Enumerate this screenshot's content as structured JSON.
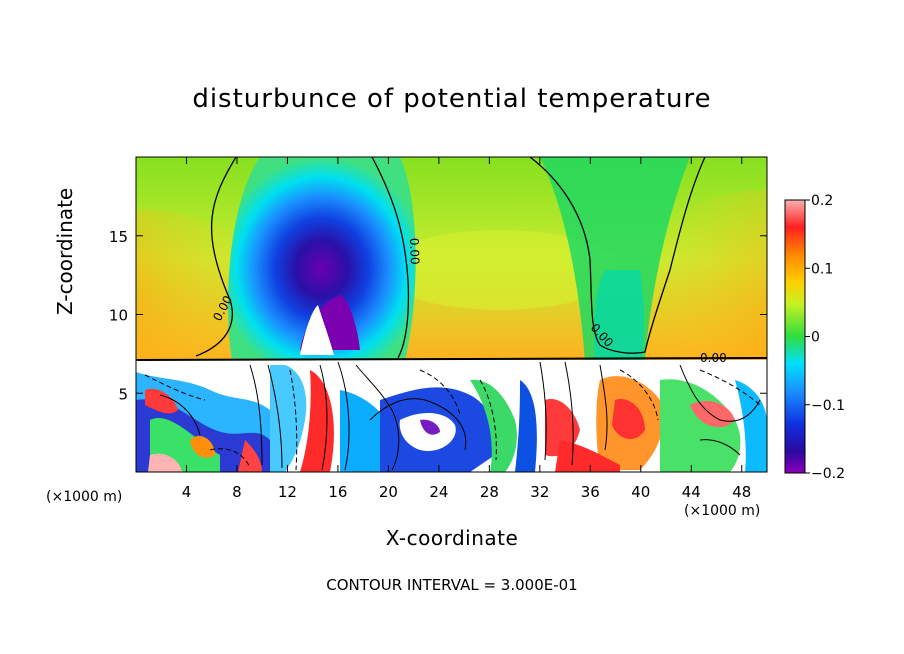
{
  "chart_data": {
    "type": "heatmap",
    "title": "disturbunce of potential temperature",
    "xlabel": "X-coordinate",
    "ylabel": "Z-coordinate",
    "x_unit": "(×1000 m)",
    "x_ticks": [
      4,
      8,
      12,
      16,
      20,
      24,
      28,
      32,
      36,
      40,
      44,
      48
    ],
    "y_ticks": [
      5,
      10,
      15
    ],
    "xlim": [
      0,
      50
    ],
    "ylim": [
      0,
      20
    ],
    "colorbar": {
      "range": [
        -0.2,
        0.2
      ],
      "tick_labels": [
        "0.2",
        "0.1",
        "0",
        "−0.1",
        "−0.2"
      ],
      "tick_values": [
        0.2,
        0.1,
        0,
        -0.1,
        -0.2
      ]
    },
    "contour_label": "0.00",
    "footer": "CONTOUR INTERVAL = 3.000E-01",
    "colors": {
      "positive_high": "#f9a0a0",
      "positive": "#ff8800",
      "neutral": "#33cc33",
      "negative": "#0066ff",
      "negative_low": "#8800cc"
    }
  }
}
